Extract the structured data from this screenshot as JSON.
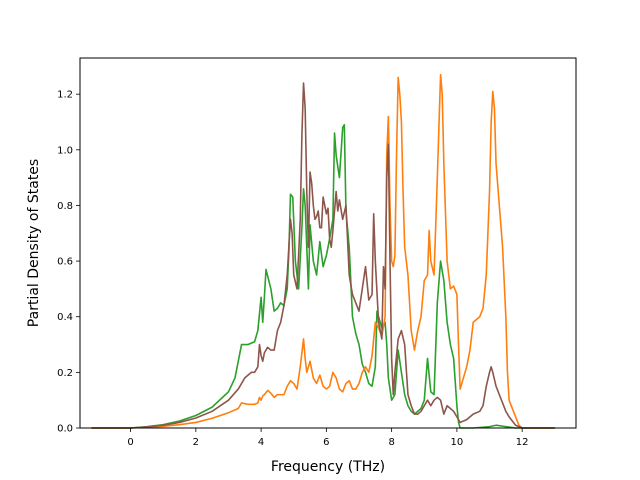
{
  "chart_data": {
    "type": "line",
    "title": "",
    "xlabel": "Frequency (THz)",
    "ylabel": "Partial Density of States",
    "xlim": [
      -1.55,
      13.65
    ],
    "ylim": [
      0,
      1.33
    ],
    "xticks": [
      0,
      2,
      4,
      6,
      8,
      10,
      12
    ],
    "yticks": [
      0.0,
      0.2,
      0.4,
      0.6,
      0.8,
      1.0,
      1.2
    ],
    "xtick_labels": [
      "0",
      "2",
      "4",
      "6",
      "8",
      "10",
      "12"
    ],
    "ytick_labels": [
      "0.0",
      "0.2",
      "0.4",
      "0.6",
      "0.8",
      "1.0",
      "1.2"
    ],
    "grid": false,
    "legend": false,
    "series": [
      {
        "color": "#2ca02c",
        "points": [
          [
            -1.2,
            0
          ],
          [
            -0.5,
            0
          ],
          [
            0,
            0
          ],
          [
            0.5,
            0.005
          ],
          [
            1,
            0.012
          ],
          [
            1.5,
            0.025
          ],
          [
            2,
            0.045
          ],
          [
            2.5,
            0.075
          ],
          [
            3,
            0.13
          ],
          [
            3.2,
            0.18
          ],
          [
            3.4,
            0.3
          ],
          [
            3.6,
            0.3
          ],
          [
            3.8,
            0.31
          ],
          [
            3.9,
            0.35
          ],
          [
            4.0,
            0.47
          ],
          [
            4.05,
            0.38
          ],
          [
            4.1,
            0.47
          ],
          [
            4.15,
            0.57
          ],
          [
            4.3,
            0.5
          ],
          [
            4.4,
            0.42
          ],
          [
            4.5,
            0.43
          ],
          [
            4.6,
            0.45
          ],
          [
            4.7,
            0.44
          ],
          [
            4.8,
            0.5
          ],
          [
            4.85,
            0.63
          ],
          [
            4.9,
            0.84
          ],
          [
            4.97,
            0.83
          ],
          [
            5.05,
            0.6
          ],
          [
            5.15,
            0.5
          ],
          [
            5.25,
            0.72
          ],
          [
            5.3,
            0.86
          ],
          [
            5.35,
            0.8
          ],
          [
            5.45,
            0.5
          ],
          [
            5.5,
            0.73
          ],
          [
            5.6,
            0.6
          ],
          [
            5.7,
            0.55
          ],
          [
            5.8,
            0.67
          ],
          [
            5.9,
            0.58
          ],
          [
            6.0,
            0.62
          ],
          [
            6.1,
            0.68
          ],
          [
            6.2,
            0.75
          ],
          [
            6.25,
            1.06
          ],
          [
            6.3,
            0.98
          ],
          [
            6.4,
            0.9
          ],
          [
            6.5,
            1.08
          ],
          [
            6.55,
            1.09
          ],
          [
            6.6,
            0.78
          ],
          [
            6.7,
            0.65
          ],
          [
            6.8,
            0.4
          ],
          [
            6.9,
            0.34
          ],
          [
            7.0,
            0.3
          ],
          [
            7.1,
            0.23
          ],
          [
            7.2,
            0.2
          ],
          [
            7.3,
            0.16
          ],
          [
            7.4,
            0.15
          ],
          [
            7.5,
            0.22
          ],
          [
            7.55,
            0.42
          ],
          [
            7.6,
            0.4
          ],
          [
            7.7,
            0.36
          ],
          [
            7.8,
            0.38
          ],
          [
            7.85,
            0.3
          ],
          [
            7.9,
            0.18
          ],
          [
            8.0,
            0.1
          ],
          [
            8.1,
            0.12
          ],
          [
            8.2,
            0.28
          ],
          [
            8.3,
            0.2
          ],
          [
            8.4,
            0.12
          ],
          [
            8.5,
            0.08
          ],
          [
            8.6,
            0.06
          ],
          [
            8.7,
            0.05
          ],
          [
            8.9,
            0.07
          ],
          [
            9.0,
            0.1
          ],
          [
            9.1,
            0.25
          ],
          [
            9.2,
            0.13
          ],
          [
            9.3,
            0.12
          ],
          [
            9.4,
            0.45
          ],
          [
            9.5,
            0.6
          ],
          [
            9.6,
            0.53
          ],
          [
            9.7,
            0.38
          ],
          [
            9.8,
            0.3
          ],
          [
            9.9,
            0.25
          ],
          [
            10.0,
            0.08
          ],
          [
            10.05,
            0.02
          ],
          [
            10.1,
            0
          ],
          [
            10.5,
            0
          ],
          [
            11.0,
            0.005
          ],
          [
            11.2,
            0.01
          ],
          [
            11.5,
            0.005
          ],
          [
            11.8,
            0
          ],
          [
            12.5,
            0
          ],
          [
            13.0,
            0
          ]
        ]
      },
      {
        "color": "#ff7f0e",
        "points": [
          [
            -1.2,
            0
          ],
          [
            -0.5,
            0
          ],
          [
            0,
            0
          ],
          [
            0.5,
            0.003
          ],
          [
            1,
            0.006
          ],
          [
            1.5,
            0.012
          ],
          [
            2,
            0.02
          ],
          [
            2.5,
            0.035
          ],
          [
            3,
            0.055
          ],
          [
            3.3,
            0.07
          ],
          [
            3.4,
            0.09
          ],
          [
            3.6,
            0.085
          ],
          [
            3.8,
            0.085
          ],
          [
            3.9,
            0.09
          ],
          [
            3.95,
            0.11
          ],
          [
            4.0,
            0.1
          ],
          [
            4.05,
            0.115
          ],
          [
            4.1,
            0.12
          ],
          [
            4.2,
            0.135
          ],
          [
            4.3,
            0.125
          ],
          [
            4.4,
            0.11
          ],
          [
            4.5,
            0.12
          ],
          [
            4.7,
            0.12
          ],
          [
            4.8,
            0.15
          ],
          [
            4.9,
            0.17
          ],
          [
            5.0,
            0.16
          ],
          [
            5.1,
            0.14
          ],
          [
            5.2,
            0.22
          ],
          [
            5.3,
            0.32
          ],
          [
            5.35,
            0.25
          ],
          [
            5.4,
            0.2
          ],
          [
            5.5,
            0.24
          ],
          [
            5.6,
            0.18
          ],
          [
            5.7,
            0.16
          ],
          [
            5.8,
            0.19
          ],
          [
            5.9,
            0.15
          ],
          [
            6.0,
            0.14
          ],
          [
            6.1,
            0.15
          ],
          [
            6.2,
            0.2
          ],
          [
            6.3,
            0.18
          ],
          [
            6.4,
            0.14
          ],
          [
            6.5,
            0.13
          ],
          [
            6.6,
            0.16
          ],
          [
            6.7,
            0.17
          ],
          [
            6.8,
            0.14
          ],
          [
            6.9,
            0.14
          ],
          [
            7.0,
            0.16
          ],
          [
            7.1,
            0.2
          ],
          [
            7.2,
            0.22
          ],
          [
            7.3,
            0.2
          ],
          [
            7.4,
            0.26
          ],
          [
            7.5,
            0.38
          ],
          [
            7.6,
            0.36
          ],
          [
            7.7,
            0.33
          ],
          [
            7.8,
            0.4
          ],
          [
            7.85,
            0.98
          ],
          [
            7.9,
            1.12
          ],
          [
            7.95,
            0.8
          ],
          [
            8.0,
            0.6
          ],
          [
            8.05,
            0.58
          ],
          [
            8.1,
            0.62
          ],
          [
            8.15,
            0.98
          ],
          [
            8.2,
            1.26
          ],
          [
            8.25,
            1.2
          ],
          [
            8.3,
            1.1
          ],
          [
            8.35,
            0.85
          ],
          [
            8.4,
            0.65
          ],
          [
            8.5,
            0.55
          ],
          [
            8.6,
            0.35
          ],
          [
            8.7,
            0.28
          ],
          [
            8.8,
            0.35
          ],
          [
            8.9,
            0.4
          ],
          [
            9.0,
            0.53
          ],
          [
            9.1,
            0.55
          ],
          [
            9.15,
            0.71
          ],
          [
            9.2,
            0.6
          ],
          [
            9.3,
            0.55
          ],
          [
            9.4,
            0.9
          ],
          [
            9.5,
            1.27
          ],
          [
            9.55,
            1.2
          ],
          [
            9.6,
            0.95
          ],
          [
            9.7,
            0.6
          ],
          [
            9.8,
            0.5
          ],
          [
            9.9,
            0.51
          ],
          [
            10.0,
            0.48
          ],
          [
            10.05,
            0.3
          ],
          [
            10.1,
            0.14
          ],
          [
            10.2,
            0.18
          ],
          [
            10.3,
            0.22
          ],
          [
            10.4,
            0.28
          ],
          [
            10.5,
            0.38
          ],
          [
            10.6,
            0.39
          ],
          [
            10.7,
            0.4
          ],
          [
            10.8,
            0.43
          ],
          [
            10.9,
            0.55
          ],
          [
            11.0,
            0.85
          ],
          [
            11.05,
            1.1
          ],
          [
            11.1,
            1.21
          ],
          [
            11.15,
            1.15
          ],
          [
            11.2,
            0.95
          ],
          [
            11.3,
            0.8
          ],
          [
            11.4,
            0.65
          ],
          [
            11.5,
            0.4
          ],
          [
            11.55,
            0.2
          ],
          [
            11.6,
            0.1
          ],
          [
            11.7,
            0.07
          ],
          [
            11.8,
            0.04
          ],
          [
            11.9,
            0.01
          ],
          [
            12.0,
            0
          ],
          [
            12.5,
            0
          ],
          [
            13.0,
            0
          ]
        ]
      },
      {
        "color": "#8c564b",
        "points": [
          [
            -1.2,
            0
          ],
          [
            -0.5,
            0
          ],
          [
            0,
            0
          ],
          [
            0.5,
            0.004
          ],
          [
            1,
            0.01
          ],
          [
            1.5,
            0.02
          ],
          [
            2,
            0.036
          ],
          [
            2.5,
            0.06
          ],
          [
            3,
            0.1
          ],
          [
            3.3,
            0.14
          ],
          [
            3.5,
            0.18
          ],
          [
            3.7,
            0.2
          ],
          [
            3.8,
            0.2
          ],
          [
            3.9,
            0.22
          ],
          [
            3.95,
            0.3
          ],
          [
            4.0,
            0.26
          ],
          [
            4.05,
            0.24
          ],
          [
            4.1,
            0.27
          ],
          [
            4.2,
            0.29
          ],
          [
            4.3,
            0.28
          ],
          [
            4.4,
            0.28
          ],
          [
            4.5,
            0.35
          ],
          [
            4.6,
            0.38
          ],
          [
            4.7,
            0.44
          ],
          [
            4.8,
            0.55
          ],
          [
            4.85,
            0.65
          ],
          [
            4.9,
            0.75
          ],
          [
            4.95,
            0.7
          ],
          [
            5.0,
            0.55
          ],
          [
            5.1,
            0.5
          ],
          [
            5.2,
            0.75
          ],
          [
            5.25,
            1.05
          ],
          [
            5.3,
            1.24
          ],
          [
            5.35,
            1.15
          ],
          [
            5.4,
            0.85
          ],
          [
            5.45,
            0.65
          ],
          [
            5.5,
            0.92
          ],
          [
            5.55,
            0.88
          ],
          [
            5.6,
            0.8
          ],
          [
            5.65,
            0.75
          ],
          [
            5.7,
            0.76
          ],
          [
            5.75,
            0.78
          ],
          [
            5.8,
            0.72
          ],
          [
            5.85,
            0.72
          ],
          [
            5.9,
            0.83
          ],
          [
            5.95,
            0.8
          ],
          [
            6.0,
            0.77
          ],
          [
            6.05,
            0.79
          ],
          [
            6.1,
            0.68
          ],
          [
            6.15,
            0.65
          ],
          [
            6.2,
            0.71
          ],
          [
            6.3,
            0.85
          ],
          [
            6.35,
            0.78
          ],
          [
            6.4,
            0.82
          ],
          [
            6.5,
            0.75
          ],
          [
            6.6,
            0.8
          ],
          [
            6.7,
            0.55
          ],
          [
            6.8,
            0.48
          ],
          [
            6.9,
            0.45
          ],
          [
            7.0,
            0.42
          ],
          [
            7.1,
            0.5
          ],
          [
            7.2,
            0.58
          ],
          [
            7.3,
            0.46
          ],
          [
            7.4,
            0.48
          ],
          [
            7.45,
            0.77
          ],
          [
            7.5,
            0.6
          ],
          [
            7.6,
            0.38
          ],
          [
            7.7,
            0.32
          ],
          [
            7.75,
            0.58
          ],
          [
            7.8,
            0.5
          ],
          [
            7.85,
            0.9
          ],
          [
            7.9,
            1.02
          ],
          [
            7.95,
            0.6
          ],
          [
            8.0,
            0.25
          ],
          [
            8.05,
            0.12
          ],
          [
            8.1,
            0.2
          ],
          [
            8.2,
            0.32
          ],
          [
            8.3,
            0.35
          ],
          [
            8.4,
            0.3
          ],
          [
            8.5,
            0.12
          ],
          [
            8.6,
            0.08
          ],
          [
            8.7,
            0.05
          ],
          [
            8.8,
            0.05
          ],
          [
            8.9,
            0.06
          ],
          [
            9.0,
            0.08
          ],
          [
            9.1,
            0.1
          ],
          [
            9.2,
            0.08
          ],
          [
            9.3,
            0.1
          ],
          [
            9.4,
            0.11
          ],
          [
            9.5,
            0.1
          ],
          [
            9.6,
            0.05
          ],
          [
            9.7,
            0.08
          ],
          [
            9.8,
            0.07
          ],
          [
            9.9,
            0.06
          ],
          [
            10.0,
            0.04
          ],
          [
            10.1,
            0.02
          ],
          [
            10.3,
            0.03
          ],
          [
            10.5,
            0.05
          ],
          [
            10.7,
            0.06
          ],
          [
            10.8,
            0.08
          ],
          [
            10.9,
            0.15
          ],
          [
            11.0,
            0.2
          ],
          [
            11.05,
            0.22
          ],
          [
            11.1,
            0.2
          ],
          [
            11.2,
            0.15
          ],
          [
            11.3,
            0.12
          ],
          [
            11.4,
            0.09
          ],
          [
            11.5,
            0.06
          ],
          [
            11.6,
            0.04
          ],
          [
            11.8,
            0.01
          ],
          [
            12.0,
            0
          ],
          [
            12.5,
            0
          ],
          [
            13.0,
            0
          ]
        ]
      }
    ]
  }
}
